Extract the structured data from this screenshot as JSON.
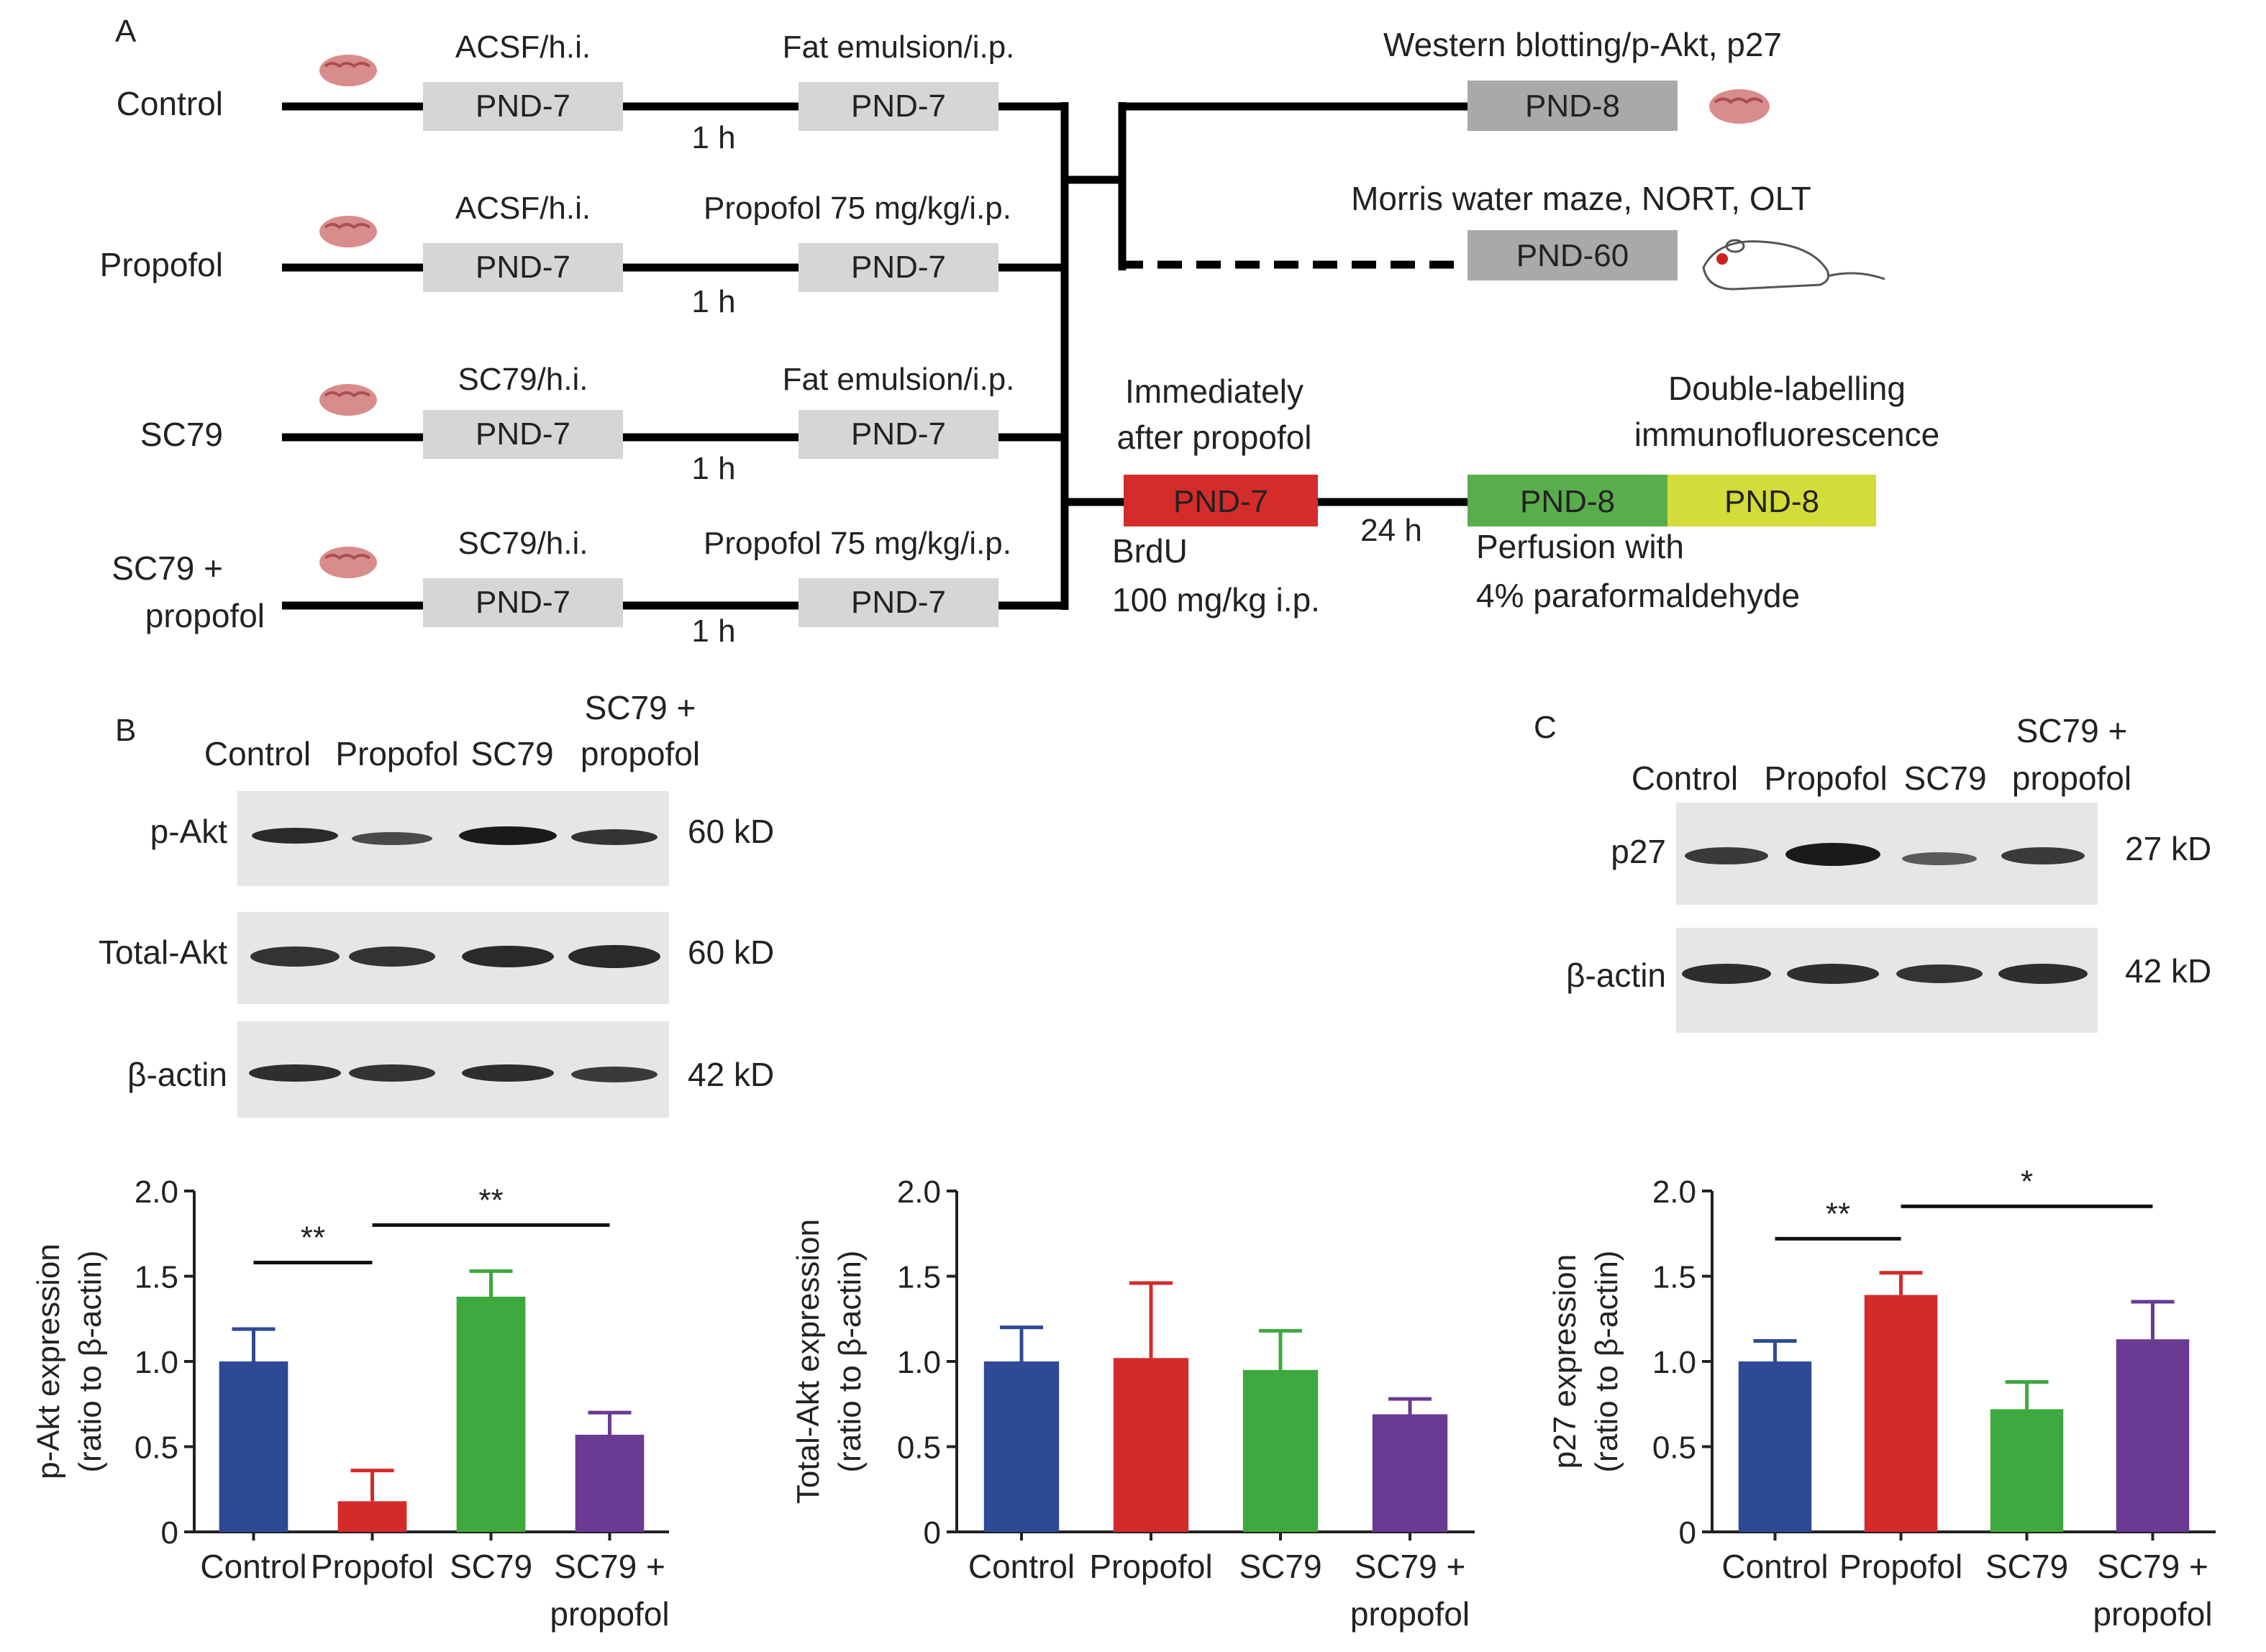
{
  "panel_a": {
    "label": "A",
    "groups": [
      {
        "name": "Control",
        "injection1": "ACSF/h.i.",
        "injection2": "Fat emulsion/i.p.",
        "box1": "PND-7",
        "box2": "PND-7",
        "interval": "1 h"
      },
      {
        "name": "Propofol",
        "injection1": "ACSF/h.i.",
        "injection2": "Propofol 75 mg/kg/i.p.",
        "box1": "PND-7",
        "box2": "PND-7",
        "interval": "1 h"
      },
      {
        "name": "SC79",
        "injection1": "SC79/h.i.",
        "injection2": "Fat emulsion/i.p.",
        "box1": "PND-7",
        "box2": "PND-7",
        "interval": "1 h"
      },
      {
        "name_line1": "SC79 +",
        "name_line2": "propofol",
        "injection1": "SC79/h.i.",
        "injection2": "Propofol 75 mg/kg/i.p.",
        "box1": "PND-7",
        "box2": "PND-7",
        "interval": "1 h"
      }
    ],
    "outcome_wb": {
      "label": "Western blotting/p-Akt, p27",
      "box": "PND-8"
    },
    "outcome_behavior": {
      "label": "Morris water maze, NORT, OLT",
      "box": "PND-60"
    },
    "brdu": {
      "top1": "Immediately",
      "top2": "after propofol",
      "box": "PND-7",
      "bottom1": "BrdU",
      "bottom2": "100 mg/kg i.p.",
      "interval": "24 h"
    },
    "immuno": {
      "top1": "Double-labelling",
      "top2": "immunofluorescence",
      "box1": "PND-8",
      "box2": "PND-8",
      "bottom1": "Perfusion with",
      "bottom2": "4% paraformaldehyde"
    }
  },
  "panel_b": {
    "label": "B",
    "lanes": [
      "Control",
      "Propofol",
      "SC79"
    ],
    "lane4_line1": "SC79 +",
    "lane4_line2": "propofol",
    "blots": [
      {
        "protein": "p-Akt",
        "size": "60 kD"
      },
      {
        "protein": "Total-Akt",
        "size": "60 kD"
      },
      {
        "protein": "β-actin",
        "size": "42 kD"
      }
    ]
  },
  "panel_c": {
    "label": "C",
    "lanes": [
      "Control",
      "Propofol",
      "SC79"
    ],
    "lane4_line1": "SC79 +",
    "lane4_line2": "propofol",
    "blots": [
      {
        "protein": "p27",
        "size": "27 kD"
      },
      {
        "protein": "β-actin",
        "size": "42 kD"
      }
    ]
  },
  "colors": {
    "control": "#2e4a96",
    "propofol": "#d42a2a",
    "sc79": "#3ea93e",
    "sc79_propofol": "#6b3a93",
    "pnd_box": "#d6d6d6",
    "pnd_box_dark": "#a9a9a9",
    "brdu_box": "#d62b2b",
    "immuno_green": "#5aad4b",
    "immuno_yellow": "#d4dc3a"
  },
  "chart_data": [
    {
      "type": "bar",
      "categories": [
        "Control",
        "Propofol",
        "SC79",
        "SC79 + propofol"
      ],
      "tick_labels": [
        [
          "Control"
        ],
        [
          "Propofol"
        ],
        [
          "SC79"
        ],
        [
          "SC79 +",
          "propofol"
        ]
      ],
      "values": [
        1.0,
        0.18,
        1.38,
        0.57
      ],
      "errors": [
        0.19,
        0.18,
        0.15,
        0.13
      ],
      "ylabel_line1": "p-Akt expression",
      "ylabel_line2": "(ratio to β-actin)",
      "ylim": [
        0,
        2.0
      ],
      "yticks": [
        "0",
        "0.5",
        "1.0",
        "1.5",
        "2.0"
      ],
      "significance": [
        {
          "from": 0,
          "to": 1,
          "label": "**",
          "y": 1.58
        },
        {
          "from": 1,
          "to": 3,
          "label": "**",
          "y": 1.8
        }
      ]
    },
    {
      "type": "bar",
      "categories": [
        "Control",
        "Propofol",
        "SC79",
        "SC79 + propofol"
      ],
      "tick_labels": [
        [
          "Control"
        ],
        [
          "Propofol"
        ],
        [
          "SC79"
        ],
        [
          "SC79 +",
          "propofol"
        ]
      ],
      "values": [
        1.0,
        1.02,
        0.95,
        0.69
      ],
      "errors": [
        0.2,
        0.44,
        0.23,
        0.09
      ],
      "ylabel_line1": "Total-Akt expression",
      "ylabel_line2": "(ratio to β-actin)",
      "ylim": [
        0,
        2.0
      ],
      "yticks": [
        "0",
        "0.5",
        "1.0",
        "1.5",
        "2.0"
      ],
      "significance": []
    },
    {
      "type": "bar",
      "categories": [
        "Control",
        "Propofol",
        "SC79",
        "SC79 + propofol"
      ],
      "tick_labels": [
        [
          "Control"
        ],
        [
          "Propofol"
        ],
        [
          "SC79"
        ],
        [
          "SC79 +",
          "propofol"
        ]
      ],
      "values": [
        1.0,
        1.39,
        0.72,
        1.13
      ],
      "errors": [
        0.12,
        0.13,
        0.16,
        0.22
      ],
      "ylabel_line1": "p27 expression",
      "ylabel_line2": "(ratio to β-actin)",
      "ylim": [
        0,
        2.0
      ],
      "yticks": [
        "0",
        "0.5",
        "1.0",
        "1.5",
        "2.0"
      ],
      "significance": [
        {
          "from": 0,
          "to": 1,
          "label": "**",
          "y": 1.72
        },
        {
          "from": 1,
          "to": 3,
          "label": "*",
          "y": 1.91
        }
      ]
    }
  ]
}
